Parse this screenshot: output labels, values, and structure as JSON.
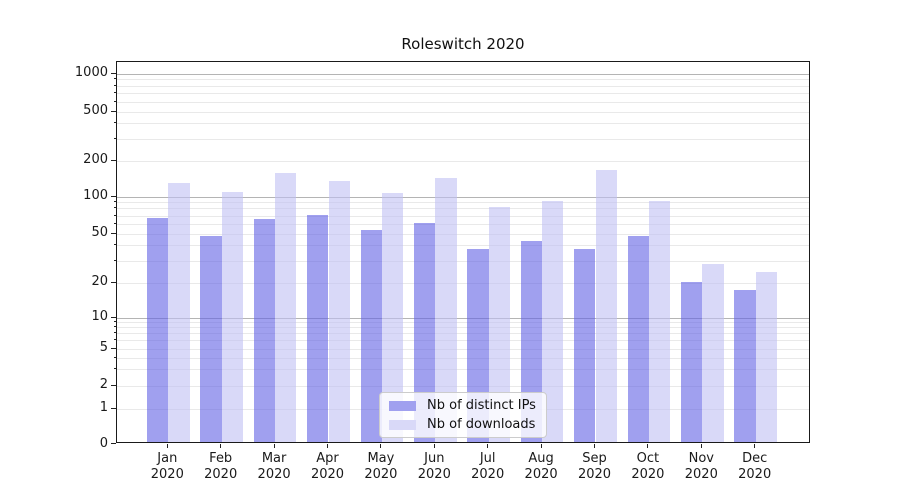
{
  "chart_data": {
    "type": "bar",
    "title": "Roleswitch 2020",
    "yscale": "symlog",
    "grid": true,
    "legend_position": "lower-center-inside",
    "categories": [
      "Jan",
      "Feb",
      "Mar",
      "Apr",
      "May",
      "Jun",
      "Jul",
      "Aug",
      "Sep",
      "Oct",
      "Nov",
      "Dec"
    ],
    "year": "2020",
    "series": [
      {
        "name": "Nb of distinct IPs",
        "color": "#a0a0ef",
        "values": [
          66,
          47,
          65,
          70,
          52,
          60,
          37,
          43,
          37,
          47,
          20,
          17
        ]
      },
      {
        "name": "Nb of downloads",
        "color": "#d9d9f8",
        "values": [
          128,
          106,
          153,
          132,
          104,
          139,
          80,
          90,
          163,
          91,
          28,
          24
        ]
      }
    ],
    "y_ticks": [
      0,
      1,
      2,
      5,
      10,
      20,
      50,
      100,
      200,
      500,
      1000
    ],
    "y_tick_labels": [
      "0",
      "1",
      "2",
      "5",
      "10",
      "20",
      "50",
      "100",
      "200",
      "500",
      "1000"
    ],
    "ylim": [
      0,
      1250
    ]
  }
}
